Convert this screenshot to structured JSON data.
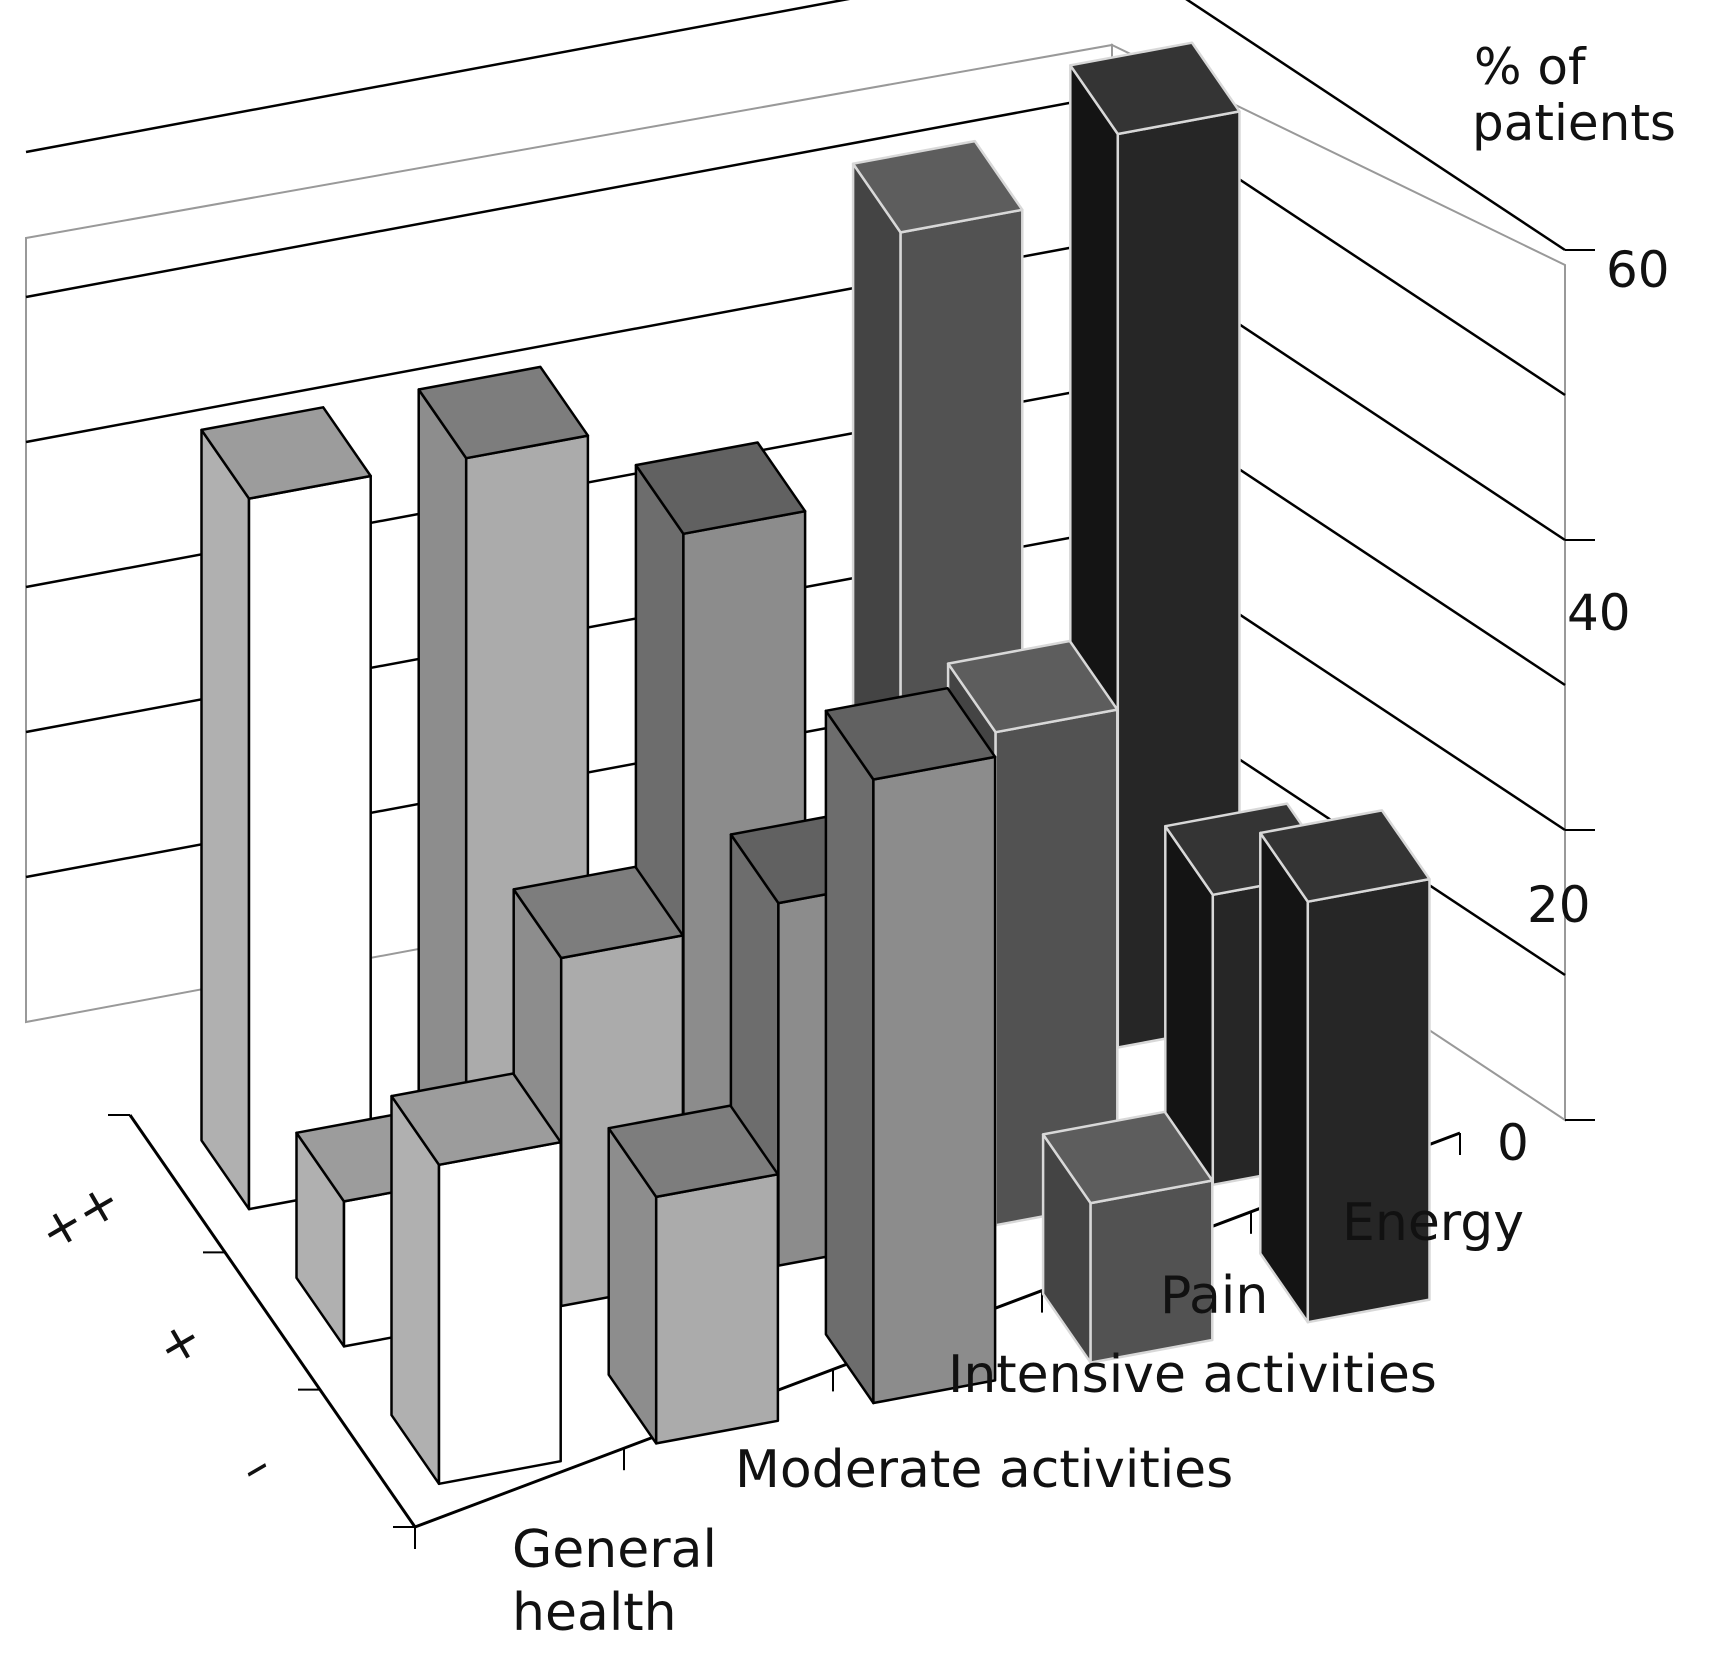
{
  "chart_data": {
    "type": "bar",
    "variant": "3d-grouped",
    "title": "",
    "ylabel": "% of patients",
    "ylim": [
      0,
      60
    ],
    "yticks": [
      0,
      20,
      40,
      60
    ],
    "depth_labels": [
      "++",
      "+",
      "–"
    ],
    "categories": [
      "General health",
      "Moderate activities",
      "Intensive activities",
      "Pain",
      "Energy"
    ],
    "category_colors": [
      "#c8c8c8",
      "#a0a0a0",
      "#7c7c7c",
      "#3a3a3a",
      "#080808"
    ],
    "series": [
      {
        "values": [
          49,
          49,
          41,
          59,
          63
        ]
      },
      {
        "values": [
          10,
          24,
          25,
          34,
          20
        ]
      },
      {
        "values": [
          22,
          17,
          43,
          11,
          29
        ]
      }
    ],
    "grid": true
  }
}
